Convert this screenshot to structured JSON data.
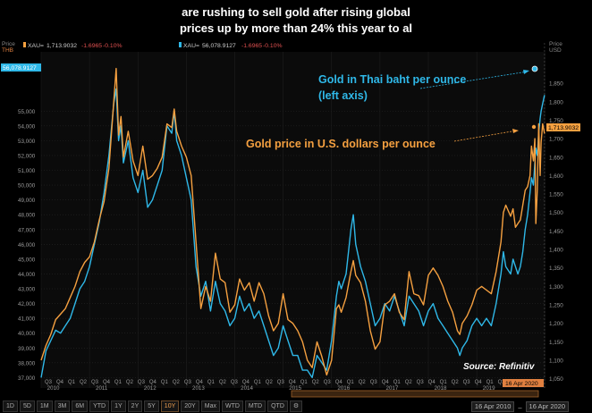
{
  "headline": {
    "line1": "are rushing to sell gold after rising global",
    "line2": "prices up by more than 24% this year to al"
  },
  "chart_data": {
    "type": "line",
    "left_axis": {
      "name": "Price",
      "unit": "THB",
      "ylim": [
        36300,
        59000
      ],
      "ticks": [
        "55,000",
        "54,000",
        "53,000",
        "52,000",
        "51,000",
        "50,000",
        "49,000",
        "48,000",
        "47,000",
        "46,000",
        "45,000",
        "44,000",
        "43,000",
        "42,000",
        "41,000",
        "40,000",
        "39,000",
        "38,000",
        "37,000"
      ],
      "last_value_label": "56,078.9127"
    },
    "right_axis": {
      "name": "Price",
      "unit": "USD",
      "ylim": [
        1025,
        1935
      ],
      "ticks": [
        "1,850",
        "1,800",
        "1,750",
        "1,700",
        "1,650",
        "1,600",
        "1,550",
        "1,500",
        "1,450",
        "1,400",
        "1,350",
        "1,300",
        "1,250",
        "1,200",
        "1,150",
        "1,100",
        "1,050"
      ],
      "last_value_label": "1,713.9032"
    },
    "x_axis": {
      "range": [
        2010.0,
        2020.42
      ],
      "quarter_labels": [
        "Q3",
        "Q4",
        "Q1",
        "Q2",
        "Q3",
        "Q4",
        "Q1",
        "Q2",
        "Q3",
        "Q4",
        "Q1",
        "Q2",
        "Q3",
        "Q4",
        "Q1",
        "Q2",
        "Q3",
        "Q4",
        "Q1",
        "Q2",
        "Q3",
        "Q4",
        "Q1",
        "Q2",
        "Q3",
        "Q4",
        "Q1",
        "Q2",
        "Q3",
        "Q4",
        "Q1",
        "Q2",
        "Q3",
        "Q4",
        "Q1",
        "Q2",
        "Q3",
        "Q4",
        "Q1",
        "Q2",
        "Q3",
        "Q4",
        "Q1"
      ],
      "year_labels": [
        "2010",
        "2011",
        "2012",
        "2013",
        "2014",
        "2015",
        "2016",
        "2017",
        "2018",
        "2019"
      ],
      "end_label": "16 Apr 2020"
    },
    "legend": {
      "series1": {
        "name": "XAU=",
        "value": "1,713.9032",
        "change": "-1.6965",
        "pct": "-0.10%"
      },
      "series2": {
        "name": "XAU=",
        "value": "56,078.9127",
        "change": "-1.6965",
        "pct": "-0.10%"
      }
    },
    "series": [
      {
        "name": "Gold in Thai baht per ounce",
        "axis": "left",
        "color": "#2fb8e8",
        "points": [
          [
            2010.0,
            37000
          ],
          [
            2010.1,
            38800
          ],
          [
            2010.2,
            39500
          ],
          [
            2010.3,
            40200
          ],
          [
            2010.4,
            40000
          ],
          [
            2010.5,
            40500
          ],
          [
            2010.6,
            41000
          ],
          [
            2010.7,
            42000
          ],
          [
            2010.8,
            43000
          ],
          [
            2010.9,
            43500
          ],
          [
            2011.0,
            44500
          ],
          [
            2011.1,
            46000
          ],
          [
            2011.2,
            47500
          ],
          [
            2011.3,
            49500
          ],
          [
            2011.4,
            52000
          ],
          [
            2011.5,
            55500
          ],
          [
            2011.55,
            56500
          ],
          [
            2011.6,
            53000
          ],
          [
            2011.65,
            54000
          ],
          [
            2011.7,
            51500
          ],
          [
            2011.8,
            53000
          ],
          [
            2011.9,
            50500
          ],
          [
            2012.0,
            49500
          ],
          [
            2012.1,
            51000
          ],
          [
            2012.2,
            48500
          ],
          [
            2012.3,
            49000
          ],
          [
            2012.4,
            50000
          ],
          [
            2012.5,
            51000
          ],
          [
            2012.6,
            54000
          ],
          [
            2012.7,
            53500
          ],
          [
            2012.75,
            55000
          ],
          [
            2012.8,
            53000
          ],
          [
            2012.9,
            52000
          ],
          [
            2013.0,
            50500
          ],
          [
            2013.1,
            49000
          ],
          [
            2013.2,
            44500
          ],
          [
            2013.3,
            42500
          ],
          [
            2013.4,
            43500
          ],
          [
            2013.5,
            41500
          ],
          [
            2013.6,
            43500
          ],
          [
            2013.7,
            42000
          ],
          [
            2013.8,
            41500
          ],
          [
            2013.9,
            40500
          ],
          [
            2014.0,
            41000
          ],
          [
            2014.1,
            42500
          ],
          [
            2014.2,
            41500
          ],
          [
            2014.3,
            42000
          ],
          [
            2014.4,
            41000
          ],
          [
            2014.5,
            41500
          ],
          [
            2014.6,
            40500
          ],
          [
            2014.7,
            39500
          ],
          [
            2014.8,
            38500
          ],
          [
            2014.9,
            39000
          ],
          [
            2015.0,
            40500
          ],
          [
            2015.1,
            39500
          ],
          [
            2015.2,
            38500
          ],
          [
            2015.3,
            38500
          ],
          [
            2015.4,
            37500
          ],
          [
            2015.5,
            37500
          ],
          [
            2015.6,
            37000
          ],
          [
            2015.7,
            38500
          ],
          [
            2015.8,
            38000
          ],
          [
            2015.9,
            37500
          ],
          [
            2016.0,
            39500
          ],
          [
            2016.1,
            42500
          ],
          [
            2016.15,
            43500
          ],
          [
            2016.2,
            43000
          ],
          [
            2016.3,
            44000
          ],
          [
            2016.4,
            47000
          ],
          [
            2016.45,
            48000
          ],
          [
            2016.5,
            46000
          ],
          [
            2016.6,
            44500
          ],
          [
            2016.7,
            43500
          ],
          [
            2016.8,
            42000
          ],
          [
            2016.9,
            40500
          ],
          [
            2017.0,
            41000
          ],
          [
            2017.1,
            42000
          ],
          [
            2017.2,
            41500
          ],
          [
            2017.3,
            42500
          ],
          [
            2017.4,
            41500
          ],
          [
            2017.5,
            40500
          ],
          [
            2017.6,
            42500
          ],
          [
            2017.7,
            42000
          ],
          [
            2017.8,
            41500
          ],
          [
            2017.9,
            40500
          ],
          [
            2018.0,
            41500
          ],
          [
            2018.1,
            42000
          ],
          [
            2018.2,
            41000
          ],
          [
            2018.3,
            40500
          ],
          [
            2018.4,
            40000
          ],
          [
            2018.5,
            39500
          ],
          [
            2018.6,
            39000
          ],
          [
            2018.65,
            38500
          ],
          [
            2018.7,
            39000
          ],
          [
            2018.8,
            39500
          ],
          [
            2018.9,
            40500
          ],
          [
            2019.0,
            41000
          ],
          [
            2019.1,
            40500
          ],
          [
            2019.2,
            41000
          ],
          [
            2019.3,
            40500
          ],
          [
            2019.4,
            42000
          ],
          [
            2019.5,
            44000
          ],
          [
            2019.55,
            45500
          ],
          [
            2019.6,
            44500
          ],
          [
            2019.7,
            44000
          ],
          [
            2019.75,
            45000
          ],
          [
            2019.8,
            44500
          ],
          [
            2019.85,
            44000
          ],
          [
            2019.9,
            44500
          ],
          [
            2019.95,
            45500
          ],
          [
            2020.0,
            47000
          ],
          [
            2020.05,
            48000
          ],
          [
            2020.1,
            49500
          ],
          [
            2020.13,
            50500
          ],
          [
            2020.17,
            50000
          ],
          [
            2020.2,
            51500
          ],
          [
            2020.22,
            52500
          ],
          [
            2020.25,
            52000
          ],
          [
            2020.28,
            53500
          ],
          [
            2020.31,
            54500
          ],
          [
            2020.33,
            55000
          ],
          [
            2020.36,
            55500
          ],
          [
            2020.4,
            56078.9127
          ]
        ]
      },
      {
        "name": "Gold price in U.S. dollars per ounce",
        "axis": "right",
        "color": "#f5a040",
        "points": [
          [
            2010.0,
            1100
          ],
          [
            2010.1,
            1140
          ],
          [
            2010.2,
            1170
          ],
          [
            2010.3,
            1210
          ],
          [
            2010.4,
            1225
          ],
          [
            2010.5,
            1240
          ],
          [
            2010.6,
            1270
          ],
          [
            2010.7,
            1300
          ],
          [
            2010.8,
            1340
          ],
          [
            2010.9,
            1365
          ],
          [
            2011.0,
            1380
          ],
          [
            2011.1,
            1420
          ],
          [
            2011.2,
            1480
          ],
          [
            2011.3,
            1530
          ],
          [
            2011.4,
            1620
          ],
          [
            2011.5,
            1800
          ],
          [
            2011.55,
            1890
          ],
          [
            2011.6,
            1710
          ],
          [
            2011.65,
            1760
          ],
          [
            2011.7,
            1650
          ],
          [
            2011.8,
            1720
          ],
          [
            2011.9,
            1640
          ],
          [
            2012.0,
            1600
          ],
          [
            2012.1,
            1680
          ],
          [
            2012.2,
            1590
          ],
          [
            2012.3,
            1600
          ],
          [
            2012.4,
            1620
          ],
          [
            2012.5,
            1650
          ],
          [
            2012.6,
            1740
          ],
          [
            2012.7,
            1730
          ],
          [
            2012.75,
            1780
          ],
          [
            2012.8,
            1720
          ],
          [
            2012.9,
            1680
          ],
          [
            2013.0,
            1650
          ],
          [
            2013.1,
            1600
          ],
          [
            2013.2,
            1420
          ],
          [
            2013.3,
            1240
          ],
          [
            2013.4,
            1300
          ],
          [
            2013.5,
            1260
          ],
          [
            2013.6,
            1390
          ],
          [
            2013.7,
            1320
          ],
          [
            2013.8,
            1310
          ],
          [
            2013.9,
            1230
          ],
          [
            2014.0,
            1250
          ],
          [
            2014.1,
            1320
          ],
          [
            2014.2,
            1290
          ],
          [
            2014.3,
            1310
          ],
          [
            2014.4,
            1260
          ],
          [
            2014.5,
            1310
          ],
          [
            2014.6,
            1280
          ],
          [
            2014.7,
            1220
          ],
          [
            2014.8,
            1180
          ],
          [
            2014.9,
            1200
          ],
          [
            2015.0,
            1280
          ],
          [
            2015.1,
            1210
          ],
          [
            2015.2,
            1200
          ],
          [
            2015.3,
            1180
          ],
          [
            2015.4,
            1150
          ],
          [
            2015.5,
            1100
          ],
          [
            2015.6,
            1080
          ],
          [
            2015.7,
            1150
          ],
          [
            2015.8,
            1110
          ],
          [
            2015.9,
            1060
          ],
          [
            2016.0,
            1100
          ],
          [
            2016.1,
            1240
          ],
          [
            2016.15,
            1250
          ],
          [
            2016.2,
            1230
          ],
          [
            2016.3,
            1270
          ],
          [
            2016.4,
            1340
          ],
          [
            2016.45,
            1370
          ],
          [
            2016.5,
            1330
          ],
          [
            2016.6,
            1310
          ],
          [
            2016.7,
            1260
          ],
          [
            2016.8,
            1180
          ],
          [
            2016.9,
            1130
          ],
          [
            2017.0,
            1150
          ],
          [
            2017.1,
            1250
          ],
          [
            2017.2,
            1260
          ],
          [
            2017.3,
            1280
          ],
          [
            2017.4,
            1230
          ],
          [
            2017.5,
            1210
          ],
          [
            2017.6,
            1340
          ],
          [
            2017.7,
            1280
          ],
          [
            2017.8,
            1275
          ],
          [
            2017.9,
            1250
          ],
          [
            2018.0,
            1330
          ],
          [
            2018.1,
            1350
          ],
          [
            2018.2,
            1330
          ],
          [
            2018.3,
            1300
          ],
          [
            2018.4,
            1260
          ],
          [
            2018.5,
            1230
          ],
          [
            2018.6,
            1180
          ],
          [
            2018.65,
            1170
          ],
          [
            2018.7,
            1200
          ],
          [
            2018.8,
            1220
          ],
          [
            2018.9,
            1250
          ],
          [
            2019.0,
            1290
          ],
          [
            2019.1,
            1300
          ],
          [
            2019.2,
            1290
          ],
          [
            2019.3,
            1280
          ],
          [
            2019.4,
            1340
          ],
          [
            2019.5,
            1420
          ],
          [
            2019.55,
            1500
          ],
          [
            2019.6,
            1520
          ],
          [
            2019.7,
            1490
          ],
          [
            2019.75,
            1510
          ],
          [
            2019.8,
            1460
          ],
          [
            2019.85,
            1470
          ],
          [
            2019.9,
            1480
          ],
          [
            2019.95,
            1520
          ],
          [
            2020.0,
            1560
          ],
          [
            2020.05,
            1570
          ],
          [
            2020.1,
            1600
          ],
          [
            2020.13,
            1680
          ],
          [
            2020.17,
            1640
          ],
          [
            2020.2,
            1700
          ],
          [
            2020.22,
            1470
          ],
          [
            2020.25,
            1560
          ],
          [
            2020.28,
            1740
          ],
          [
            2020.31,
            1600
          ],
          [
            2020.33,
            1690
          ],
          [
            2020.36,
            1740
          ],
          [
            2020.4,
            1713.9032
          ]
        ]
      }
    ],
    "annotations": [
      {
        "text_line1": "Gold in Thai baht per ounce",
        "text_line2": "(left axis)",
        "color": "#2fb8e8"
      },
      {
        "text_line1": "Gold price in U.S. dollars per ounce",
        "color": "#f5a040"
      },
      {
        "text_line1": "Source: Refinitiv",
        "color": "#ffffff"
      }
    ],
    "grid": true
  },
  "range_buttons": [
    "1D",
    "5D",
    "1M",
    "3M",
    "6M",
    "YTD",
    "1Y",
    "2Y",
    "5Y",
    "10Y",
    "20Y",
    "Max",
    "WTD",
    "MTD",
    "QTD"
  ],
  "active_range": "10Y",
  "date_range": {
    "from": "16 Apr 2010",
    "separator": "–",
    "to": "16 Apr 2020"
  }
}
